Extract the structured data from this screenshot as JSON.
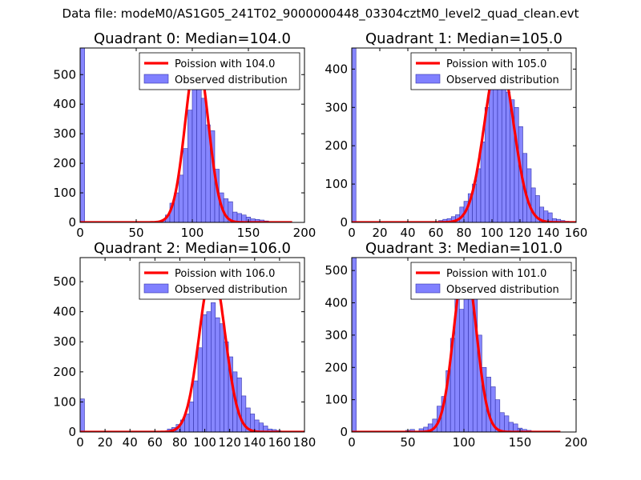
{
  "figure_title": "Data file: modeM0/AS1G05_241T02_9000000448_03304cztM0_level2_quad_clean.evt",
  "colors": {
    "bar_fill": "#8080ff",
    "bar_edge": "#3333aa",
    "curve": "#ff0000"
  },
  "chart_data": [
    {
      "type": "bar",
      "title": "Quadrant 0: Median=104.0",
      "xlim": [
        0,
        200
      ],
      "ylim": [
        0,
        590
      ],
      "xticks": [
        "0",
        "50",
        "100",
        "150",
        "200"
      ],
      "xtick_values": [
        0,
        50,
        100,
        150,
        200
      ],
      "yticks": [
        "0",
        "100",
        "200",
        "300",
        "400",
        "500"
      ],
      "ytick_values": [
        0,
        100,
        200,
        300,
        400,
        500
      ],
      "bin_width": 4,
      "bins": [
        [
          0,
          590
        ],
        [
          72,
          8
        ],
        [
          76,
          25
        ],
        [
          80,
          65
        ],
        [
          84,
          100
        ],
        [
          88,
          160
        ],
        [
          92,
          250
        ],
        [
          96,
          380
        ],
        [
          100,
          460
        ],
        [
          104,
          500
        ],
        [
          108,
          420
        ],
        [
          112,
          330
        ],
        [
          116,
          310
        ],
        [
          120,
          180
        ],
        [
          124,
          100
        ],
        [
          128,
          80
        ],
        [
          132,
          70
        ],
        [
          136,
          35
        ],
        [
          140,
          30
        ],
        [
          144,
          25
        ],
        [
          148,
          18
        ],
        [
          152,
          12
        ],
        [
          156,
          10
        ],
        [
          160,
          8
        ],
        [
          164,
          5
        ],
        [
          168,
          3
        ]
      ],
      "curve_label": "Poission with 104.0",
      "bar_label": "Observed distribution",
      "lambda": 104.0,
      "curve_peak": 565
    },
    {
      "type": "bar",
      "title": "Quadrant 1: Median=105.0",
      "xlim": [
        0,
        160
      ],
      "ylim": [
        0,
        455
      ],
      "xticks": [
        "0",
        "20",
        "40",
        "60",
        "80",
        "100",
        "120",
        "140",
        "160"
      ],
      "xtick_values": [
        0,
        20,
        40,
        60,
        80,
        100,
        120,
        140,
        160
      ],
      "yticks": [
        "0",
        "100",
        "200",
        "300",
        "400"
      ],
      "ytick_values": [
        0,
        100,
        200,
        300,
        400
      ],
      "bin_width": 3,
      "bins": [
        [
          0,
          455
        ],
        [
          62,
          5
        ],
        [
          65,
          8
        ],
        [
          68,
          10
        ],
        [
          71,
          15
        ],
        [
          74,
          20
        ],
        [
          77,
          40
        ],
        [
          80,
          55
        ],
        [
          83,
          75
        ],
        [
          86,
          100
        ],
        [
          89,
          140
        ],
        [
          92,
          210
        ],
        [
          95,
          300
        ],
        [
          98,
          410
        ],
        [
          101,
          420
        ],
        [
          104,
          415
        ],
        [
          107,
          360
        ],
        [
          110,
          340
        ],
        [
          113,
          320
        ],
        [
          116,
          300
        ],
        [
          119,
          250
        ],
        [
          122,
          180
        ],
        [
          125,
          140
        ],
        [
          128,
          90
        ],
        [
          131,
          70
        ],
        [
          134,
          40
        ],
        [
          137,
          30
        ],
        [
          140,
          25
        ],
        [
          143,
          10
        ],
        [
          146,
          8
        ],
        [
          149,
          5
        ],
        [
          152,
          3
        ]
      ],
      "curve_label": "Poission with 105.0",
      "bar_label": "Observed distribution",
      "lambda": 105.0,
      "curve_peak": 432
    },
    {
      "type": "bar",
      "title": "Quadrant 2: Median=106.0",
      "xlim": [
        0,
        180
      ],
      "ylim": [
        0,
        580
      ],
      "xticks": [
        "0",
        "20",
        "40",
        "60",
        "80",
        "100",
        "120",
        "140",
        "160",
        "180"
      ],
      "xtick_values": [
        0,
        20,
        40,
        60,
        80,
        100,
        120,
        140,
        160,
        180
      ],
      "yticks": [
        "0",
        "100",
        "200",
        "300",
        "400",
        "500"
      ],
      "ytick_values": [
        0,
        100,
        200,
        300,
        400,
        500
      ],
      "bin_width": 3.5,
      "bins": [
        [
          0,
          110
        ],
        [
          70,
          10
        ],
        [
          73.5,
          15
        ],
        [
          77,
          25
        ],
        [
          80.5,
          40
        ],
        [
          84,
          60
        ],
        [
          87.5,
          100
        ],
        [
          91,
          170
        ],
        [
          94.5,
          280
        ],
        [
          98,
          390
        ],
        [
          101.5,
          400
        ],
        [
          105,
          430
        ],
        [
          108.5,
          380
        ],
        [
          112,
          360
        ],
        [
          115.5,
          300
        ],
        [
          119,
          250
        ],
        [
          122.5,
          200
        ],
        [
          126,
          180
        ],
        [
          129.5,
          120
        ],
        [
          133,
          80
        ],
        [
          136.5,
          60
        ],
        [
          140,
          40
        ],
        [
          143.5,
          30
        ],
        [
          147,
          20
        ],
        [
          150.5,
          10
        ],
        [
          154,
          8
        ],
        [
          157.5,
          5
        ]
      ],
      "curve_label": "Poission with 106.0",
      "bar_label": "Observed distribution",
      "lambda": 106.0,
      "curve_peak": 540
    },
    {
      "type": "bar",
      "title": "Quadrant 3: Median=101.0",
      "xlim": [
        0,
        200
      ],
      "ylim": [
        0,
        540
      ],
      "xticks": [
        "0",
        "50",
        "100",
        "150",
        "200"
      ],
      "xtick_values": [
        0,
        50,
        100,
        150,
        200
      ],
      "yticks": [
        "0",
        "100",
        "200",
        "300",
        "400",
        "500"
      ],
      "ytick_values": [
        0,
        100,
        200,
        300,
        400,
        500
      ],
      "bin_width": 4,
      "bins": [
        [
          0,
          540
        ],
        [
          40,
          3
        ],
        [
          48,
          5
        ],
        [
          52,
          8
        ],
        [
          60,
          10
        ],
        [
          64,
          15
        ],
        [
          68,
          25
        ],
        [
          72,
          40
        ],
        [
          76,
          80
        ],
        [
          80,
          110
        ],
        [
          84,
          190
        ],
        [
          88,
          290
        ],
        [
          92,
          450
        ],
        [
          96,
          380
        ],
        [
          100,
          510
        ],
        [
          104,
          420
        ],
        [
          108,
          430
        ],
        [
          112,
          300
        ],
        [
          116,
          200
        ],
        [
          120,
          170
        ],
        [
          124,
          140
        ],
        [
          128,
          100
        ],
        [
          132,
          60
        ],
        [
          136,
          50
        ],
        [
          140,
          30
        ],
        [
          144,
          25
        ],
        [
          148,
          12
        ],
        [
          152,
          8
        ],
        [
          156,
          5
        ],
        [
          160,
          3
        ]
      ],
      "curve_label": "Poission with 101.0",
      "bar_label": "Observed distribution",
      "lambda": 101.0,
      "curve_peak": 520
    }
  ]
}
